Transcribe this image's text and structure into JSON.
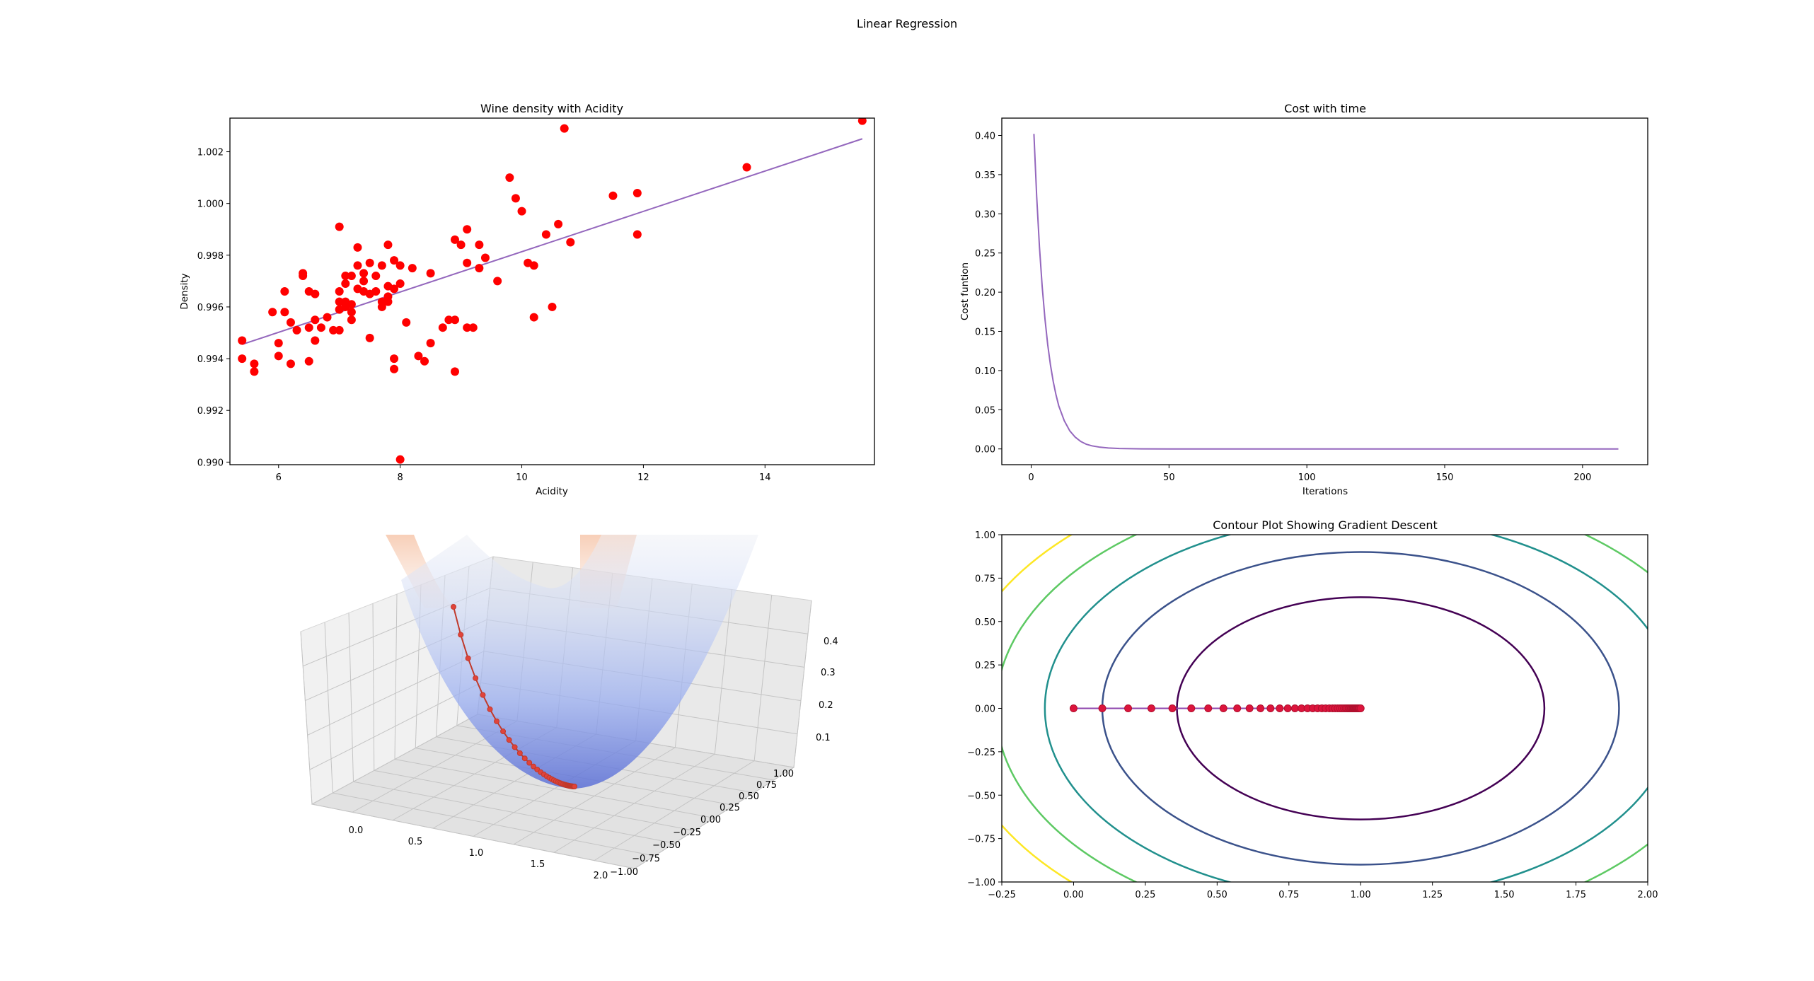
{
  "figure": {
    "suptitle": "Linear Regression"
  },
  "chart_data": [
    {
      "type": "scatter",
      "title": "Wine density with Acidity",
      "xlabel": "Acidity",
      "ylabel": "Density",
      "xlim": [
        5.2,
        15.8
      ],
      "ylim": [
        0.9899,
        1.0033
      ],
      "xticks": [
        6,
        8,
        10,
        12,
        14
      ],
      "yticks": [
        0.99,
        0.992,
        0.994,
        0.996,
        0.998,
        1.0,
        1.002
      ],
      "ytick_labels": [
        "0.990",
        "0.992",
        "0.994",
        "0.996",
        "0.998",
        "1.000",
        "1.002"
      ],
      "grid": false,
      "colors": {
        "points": "#ff0000",
        "fit_line": "#9467bd"
      },
      "points": [
        [
          5.4,
          0.9947
        ],
        [
          5.4,
          0.994
        ],
        [
          5.6,
          0.9938
        ],
        [
          5.6,
          0.9935
        ],
        [
          5.9,
          0.9958
        ],
        [
          6.0,
          0.9946
        ],
        [
          6.0,
          0.9941
        ],
        [
          6.1,
          0.9958
        ],
        [
          6.1,
          0.9966
        ],
        [
          6.2,
          0.9954
        ],
        [
          6.2,
          0.9938
        ],
        [
          6.3,
          0.9951
        ],
        [
          6.4,
          0.9973
        ],
        [
          6.4,
          0.9972
        ],
        [
          6.5,
          0.9966
        ],
        [
          6.5,
          0.9952
        ],
        [
          6.5,
          0.9939
        ],
        [
          6.6,
          0.9955
        ],
        [
          6.6,
          0.9965
        ],
        [
          6.6,
          0.9947
        ],
        [
          6.7,
          0.9952
        ],
        [
          6.8,
          0.9956
        ],
        [
          6.9,
          0.9951
        ],
        [
          7.0,
          0.9991
        ],
        [
          7.0,
          0.9966
        ],
        [
          7.0,
          0.9962
        ],
        [
          7.0,
          0.9959
        ],
        [
          7.0,
          0.9951
        ],
        [
          7.1,
          0.9972
        ],
        [
          7.1,
          0.9969
        ],
        [
          7.1,
          0.9962
        ],
        [
          7.1,
          0.996
        ],
        [
          7.2,
          0.9972
        ],
        [
          7.2,
          0.9961
        ],
        [
          7.2,
          0.9958
        ],
        [
          7.2,
          0.9955
        ],
        [
          7.3,
          0.9983
        ],
        [
          7.3,
          0.9976
        ],
        [
          7.3,
          0.9967
        ],
        [
          7.4,
          0.9973
        ],
        [
          7.4,
          0.997
        ],
        [
          7.4,
          0.9966
        ],
        [
          7.5,
          0.9977
        ],
        [
          7.5,
          0.9965
        ],
        [
          7.5,
          0.9948
        ],
        [
          7.6,
          0.9972
        ],
        [
          7.6,
          0.9966
        ],
        [
          7.7,
          0.9976
        ],
        [
          7.7,
          0.9962
        ],
        [
          7.7,
          0.996
        ],
        [
          7.8,
          0.9984
        ],
        [
          7.8,
          0.9968
        ],
        [
          7.8,
          0.9964
        ],
        [
          7.8,
          0.9962
        ],
        [
          7.9,
          0.9978
        ],
        [
          7.9,
          0.9967
        ],
        [
          7.9,
          0.994
        ],
        [
          7.9,
          0.9936
        ],
        [
          8.0,
          0.9976
        ],
        [
          8.0,
          0.9969
        ],
        [
          8.0,
          0.9901
        ],
        [
          8.1,
          0.9954
        ],
        [
          8.2,
          0.9975
        ],
        [
          8.3,
          0.9941
        ],
        [
          8.4,
          0.9939
        ],
        [
          8.5,
          0.9973
        ],
        [
          8.5,
          0.9946
        ],
        [
          8.7,
          0.9952
        ],
        [
          8.8,
          0.9955
        ],
        [
          8.9,
          0.9986
        ],
        [
          8.9,
          0.9955
        ],
        [
          8.9,
          0.9935
        ],
        [
          9.0,
          0.9984
        ],
        [
          9.1,
          0.999
        ],
        [
          9.1,
          0.9977
        ],
        [
          9.1,
          0.9952
        ],
        [
          9.2,
          0.9952
        ],
        [
          9.3,
          0.9984
        ],
        [
          9.3,
          0.9975
        ],
        [
          9.4,
          0.9979
        ],
        [
          9.6,
          0.997
        ],
        [
          9.8,
          1.001
        ],
        [
          9.9,
          1.0002
        ],
        [
          10.0,
          0.9997
        ],
        [
          10.1,
          0.9977
        ],
        [
          10.2,
          0.9976
        ],
        [
          10.2,
          0.9956
        ],
        [
          10.4,
          0.9988
        ],
        [
          10.5,
          0.996
        ],
        [
          10.6,
          0.9992
        ],
        [
          10.7,
          1.0029
        ],
        [
          10.8,
          0.9985
        ],
        [
          11.5,
          1.0003
        ],
        [
          11.9,
          1.0004
        ],
        [
          11.9,
          0.9988
        ],
        [
          13.7,
          1.0014
        ],
        [
          15.6,
          1.0032
        ]
      ],
      "fit_line": {
        "x": [
          5.4,
          15.6
        ],
        "y": [
          0.99455,
          1.0025
        ]
      }
    },
    {
      "type": "line",
      "title": "Cost with time",
      "xlabel": "Iterations",
      "ylabel": "Cost funtion",
      "xlim": [
        -10.65,
        223.65
      ],
      "ylim": [
        -0.0201,
        0.4221
      ],
      "xticks": [
        0,
        50,
        100,
        150,
        200
      ],
      "yticks": [
        0.0,
        0.05,
        0.1,
        0.15,
        0.2,
        0.25,
        0.3,
        0.35,
        0.4
      ],
      "ytick_labels": [
        "0.00",
        "0.05",
        "0.10",
        "0.15",
        "0.20",
        "0.25",
        "0.30",
        "0.35",
        "0.40"
      ],
      "grid": false,
      "colors": {
        "line": "#9467bd"
      },
      "series": [
        {
          "x": [
            1,
            2,
            3,
            4,
            5,
            6,
            7,
            8,
            9,
            10,
            12,
            14,
            16,
            18,
            20,
            22,
            25,
            28,
            32,
            36,
            40,
            50,
            75,
            100,
            150,
            213
          ],
          "values": [
            0.402,
            0.322,
            0.258,
            0.207,
            0.166,
            0.133,
            0.107,
            0.086,
            0.069,
            0.055,
            0.036,
            0.023,
            0.015,
            0.0095,
            0.006,
            0.004,
            0.0022,
            0.0012,
            0.0006,
            0.0003,
            0.0001,
            0.0,
            0.0,
            0.0,
            0.0,
            0.0
          ]
        }
      ]
    },
    {
      "type": "surface3d",
      "title": "",
      "x_ticks": [
        "0.0",
        "0.5",
        "1.0",
        "1.5",
        "2.0"
      ],
      "y_ticks": [
        "−1.00",
        "−0.75",
        "−0.50",
        "−0.25",
        "0.00",
        "0.25",
        "0.50",
        "0.75",
        "1.00"
      ],
      "z_ticks": [
        "0.1",
        "0.2",
        "0.3",
        "0.4"
      ],
      "grid": true,
      "colors": {
        "surface_low": "#3b4cc0",
        "surface_high": "#f4987a",
        "path": "#c0392b"
      },
      "descent_path_x": [
        0.0,
        0.1,
        0.19,
        0.271,
        0.344,
        0.41,
        0.469,
        0.522,
        0.57,
        0.613,
        0.651,
        0.686,
        0.718,
        0.746,
        0.771,
        0.794,
        0.815,
        0.833,
        0.85,
        0.865,
        0.878,
        0.891,
        0.902,
        0.911,
        0.92,
        0.928,
        0.935,
        0.942,
        0.948,
        0.953,
        0.958,
        0.962,
        0.966,
        0.97,
        0.973,
        0.976,
        0.978,
        0.98,
        0.983,
        0.985,
        0.987,
        0.99,
        0.993,
        0.996,
        1.0
      ]
    },
    {
      "type": "contour",
      "title": "Contour Plot Showing Gradient Descent",
      "xlabel": "",
      "ylabel": "",
      "xlim": [
        -0.25,
        2.0
      ],
      "ylim": [
        -1.0,
        1.0
      ],
      "xticks": [
        -0.25,
        0.0,
        0.25,
        0.5,
        0.75,
        1.0,
        1.25,
        1.5,
        1.75,
        2.0
      ],
      "xtick_labels": [
        "−0.25",
        "0.00",
        "0.25",
        "0.50",
        "0.75",
        "1.00",
        "1.25",
        "1.50",
        "1.75",
        "2.00"
      ],
      "yticks": [
        -1.0,
        -0.75,
        -0.5,
        -0.25,
        0.0,
        0.25,
        0.5,
        0.75,
        1.0
      ],
      "ytick_labels": [
        "−1.00",
        "−0.75",
        "−0.50",
        "−0.25",
        "0.00",
        "0.25",
        "0.50",
        "0.75",
        "1.00"
      ],
      "grid": false,
      "contour_levels": [
        {
          "a": 0.64,
          "b": 0.64,
          "color": "#440154"
        },
        {
          "a": 0.9,
          "b": 0.9,
          "color": "#3b528b"
        },
        {
          "a": 1.1,
          "b": 1.1,
          "color": "#21908d"
        },
        {
          "a": 1.27,
          "b": 1.27,
          "color": "#5dc963"
        },
        {
          "a": 1.42,
          "b": 1.42,
          "color": "#fde725"
        }
      ],
      "path": {
        "color": "#dc143c",
        "x": [
          0.0,
          0.1,
          0.19,
          0.271,
          0.344,
          0.41,
          0.469,
          0.522,
          0.57,
          0.613,
          0.651,
          0.686,
          0.718,
          0.746,
          0.771,
          0.794,
          0.815,
          0.833,
          0.85,
          0.865,
          0.878,
          0.891,
          0.902,
          0.911,
          0.92,
          0.928,
          0.935,
          0.942,
          0.948,
          0.953,
          0.958,
          0.962,
          0.966,
          0.97,
          0.973,
          0.976,
          0.978,
          0.98,
          0.983,
          0.985,
          0.987,
          0.99,
          0.993,
          0.996,
          1.0
        ],
        "y": 0.0
      }
    }
  ]
}
